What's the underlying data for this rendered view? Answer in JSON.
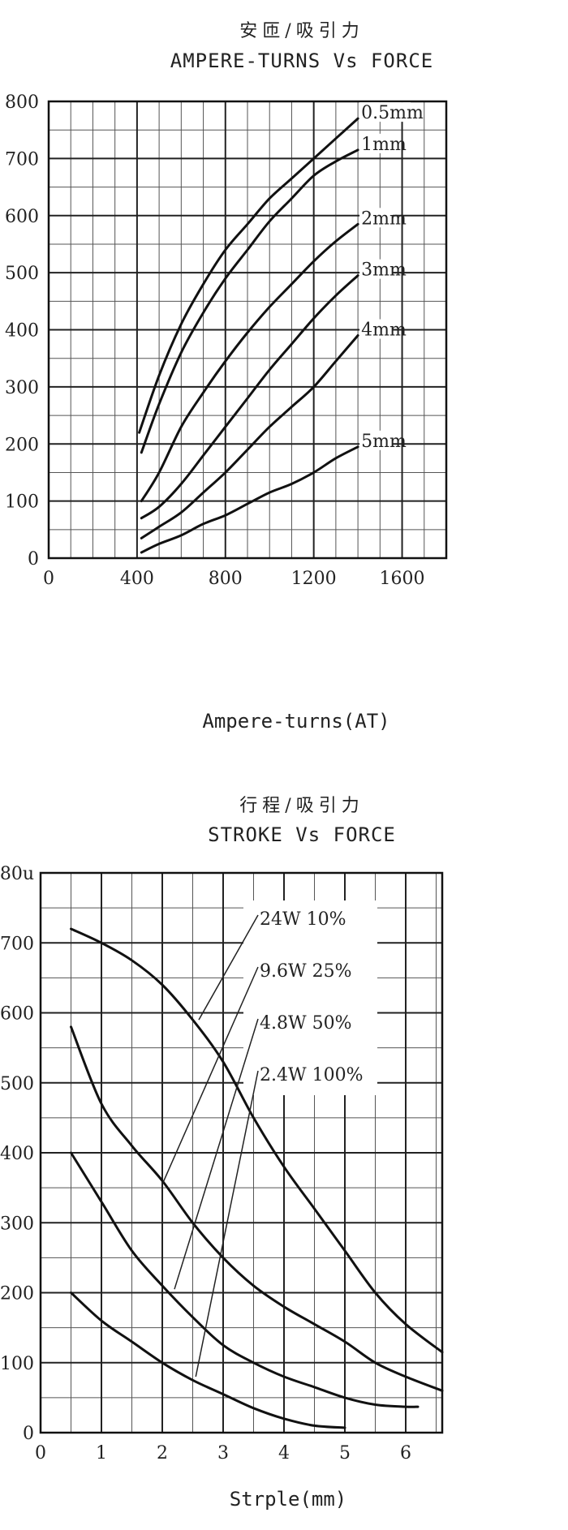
{
  "chart_data": [
    {
      "type": "line",
      "title": "安匝/吸引力",
      "subtitle": "AMPERE-TURNS Vs FORCE",
      "xlabel": "Ampere-turns(AT)",
      "ylabel": "",
      "xlim": [
        0,
        1800
      ],
      "ylim": [
        0,
        800
      ],
      "x_ticks": [
        {
          "value": 0,
          "label": "0"
        },
        {
          "value": 400,
          "label": "400"
        },
        {
          "value": 800,
          "label": "800"
        },
        {
          "value": 1200,
          "label": "1200"
        },
        {
          "value": 1600,
          "label": "1600"
        }
      ],
      "y_ticks": [
        {
          "value": 0,
          "label": "0"
        },
        {
          "value": 100,
          "label": "100"
        },
        {
          "value": 200,
          "label": "200"
        },
        {
          "value": 300,
          "label": "300"
        },
        {
          "value": 400,
          "label": "400"
        },
        {
          "value": 500,
          "label": "500"
        },
        {
          "value": 600,
          "label": "600"
        },
        {
          "value": 700,
          "label": "700"
        },
        {
          "value": 800,
          "label": "800"
        }
      ],
      "grid": true,
      "series": [
        {
          "name": "0.5mm",
          "x": [
            410,
            500,
            600,
            700,
            800,
            900,
            1000,
            1100,
            1200,
            1300,
            1400
          ],
          "y": [
            220,
            320,
            410,
            480,
            540,
            585,
            630,
            665,
            700,
            735,
            770
          ]
        },
        {
          "name": "1mm",
          "x": [
            420,
            500,
            600,
            700,
            800,
            900,
            1000,
            1100,
            1200,
            1300,
            1400
          ],
          "y": [
            185,
            270,
            360,
            430,
            490,
            540,
            590,
            630,
            670,
            695,
            715
          ]
        },
        {
          "name": "2mm",
          "x": [
            420,
            500,
            600,
            700,
            800,
            900,
            1000,
            1100,
            1200,
            1300,
            1400
          ],
          "y": [
            100,
            150,
            230,
            290,
            345,
            395,
            440,
            480,
            520,
            555,
            585
          ]
        },
        {
          "name": "3mm",
          "x": [
            420,
            500,
            600,
            700,
            800,
            900,
            1000,
            1100,
            1200,
            1300,
            1400
          ],
          "y": [
            70,
            90,
            130,
            180,
            230,
            280,
            330,
            375,
            420,
            460,
            495
          ]
        },
        {
          "name": "4mm",
          "x": [
            420,
            500,
            600,
            700,
            800,
            900,
            1000,
            1100,
            1200,
            1300,
            1400
          ],
          "y": [
            35,
            55,
            80,
            115,
            150,
            190,
            230,
            265,
            300,
            345,
            390
          ]
        },
        {
          "name": "5mm",
          "x": [
            420,
            500,
            600,
            700,
            800,
            900,
            1000,
            1100,
            1200,
            1300,
            1400
          ],
          "y": [
            10,
            25,
            40,
            60,
            75,
            95,
            115,
            130,
            150,
            175,
            195
          ]
        }
      ]
    },
    {
      "type": "line",
      "title": "行程/吸引力",
      "subtitle": "STROKE Vs FORCE",
      "xlabel": "Strple(mm)",
      "ylabel": "",
      "xlim": [
        0,
        6.6
      ],
      "ylim": [
        0,
        800
      ],
      "x_ticks": [
        {
          "value": 0,
          "label": "0"
        },
        {
          "value": 1,
          "label": "1"
        },
        {
          "value": 2,
          "label": "2"
        },
        {
          "value": 3,
          "label": "3"
        },
        {
          "value": 4,
          "label": "4"
        },
        {
          "value": 5,
          "label": "5"
        },
        {
          "value": 6,
          "label": "6"
        }
      ],
      "y_ticks": [
        {
          "value": 0,
          "label": "0"
        },
        {
          "value": 100,
          "label": "100"
        },
        {
          "value": 200,
          "label": "200"
        },
        {
          "value": 300,
          "label": "300"
        },
        {
          "value": 400,
          "label": "400"
        },
        {
          "value": 500,
          "label": "500"
        },
        {
          "value": 600,
          "label": "600"
        },
        {
          "value": 700,
          "label": "700"
        },
        {
          "value": 800,
          "label": "80u"
        }
      ],
      "grid": true,
      "series": [
        {
          "name": "24W 10%",
          "x": [
            0.5,
            1.0,
            1.5,
            2.0,
            2.5,
            3.0,
            3.5,
            4.0,
            4.5,
            5.0,
            5.5,
            6.0,
            6.6
          ],
          "y": [
            720,
            700,
            675,
            640,
            590,
            530,
            450,
            380,
            320,
            260,
            200,
            155,
            115
          ]
        },
        {
          "name": "9.6W 25%",
          "x": [
            0.5,
            1.0,
            1.5,
            2.0,
            2.5,
            3.0,
            3.5,
            4.0,
            4.5,
            5.0,
            5.5,
            6.0,
            6.6
          ],
          "y": [
            580,
            470,
            410,
            360,
            300,
            250,
            210,
            180,
            155,
            130,
            100,
            80,
            60
          ]
        },
        {
          "name": "4.8W 50%",
          "x": [
            0.5,
            1.0,
            1.5,
            2.0,
            2.5,
            3.0,
            3.5,
            4.0,
            4.5,
            5.0,
            5.5,
            6.0,
            6.2
          ],
          "y": [
            400,
            330,
            260,
            210,
            165,
            125,
            100,
            80,
            65,
            50,
            40,
            37,
            37
          ]
        },
        {
          "name": "2.4W 100%",
          "x": [
            0.5,
            1.0,
            1.5,
            2.0,
            2.5,
            3.0,
            3.5,
            4.0,
            4.5,
            5.0
          ],
          "y": [
            200,
            160,
            130,
            100,
            75,
            55,
            35,
            20,
            10,
            7
          ]
        }
      ]
    }
  ]
}
